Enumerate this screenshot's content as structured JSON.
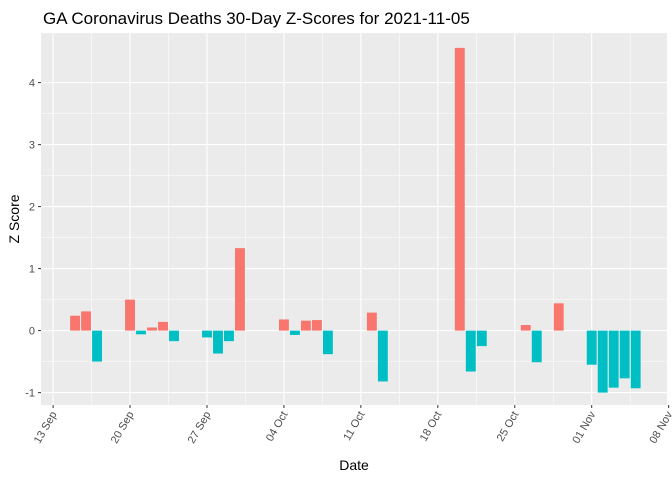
{
  "chart_data": {
    "type": "bar",
    "title": "GA Coronavirus Deaths 30-Day Z-Scores for 2021-11-05",
    "xlabel": "Date",
    "ylabel": "Z Score",
    "ylim": [
      -1.2,
      4.8
    ],
    "y_ticks": [
      -1,
      0,
      1,
      2,
      3,
      4
    ],
    "x_ticks": [
      {
        "date": "2021-09-13",
        "label": "13 Sep"
      },
      {
        "date": "2021-09-20",
        "label": "20 Sep"
      },
      {
        "date": "2021-09-27",
        "label": "27 Sep"
      },
      {
        "date": "2021-10-04",
        "label": "04 Oct"
      },
      {
        "date": "2021-10-11",
        "label": "11 Oct"
      },
      {
        "date": "2021-10-18",
        "label": "18 Oct"
      },
      {
        "date": "2021-10-25",
        "label": "25 Oct"
      },
      {
        "date": "2021-11-01",
        "label": "01 Nov"
      },
      {
        "date": "2021-11-08",
        "label": "08 Nov"
      }
    ],
    "grid": true,
    "legend": "none",
    "colors": {
      "positive": "#F8766D",
      "negative": "#00BFC4",
      "panel": "#EBEBEB"
    },
    "bars": [
      {
        "date": "2021-09-15",
        "value": 0.24
      },
      {
        "date": "2021-09-16",
        "value": 0.31
      },
      {
        "date": "2021-09-17",
        "value": -0.5
      },
      {
        "date": "2021-09-20",
        "value": 0.5
      },
      {
        "date": "2021-09-21",
        "value": -0.06
      },
      {
        "date": "2021-09-22",
        "value": 0.05
      },
      {
        "date": "2021-09-23",
        "value": 0.14
      },
      {
        "date": "2021-09-24",
        "value": -0.17
      },
      {
        "date": "2021-09-27",
        "value": -0.11
      },
      {
        "date": "2021-09-28",
        "value": -0.37
      },
      {
        "date": "2021-09-29",
        "value": -0.17
      },
      {
        "date": "2021-09-30",
        "value": 1.33
      },
      {
        "date": "2021-10-04",
        "value": 0.18
      },
      {
        "date": "2021-10-05",
        "value": -0.07
      },
      {
        "date": "2021-10-06",
        "value": 0.16
      },
      {
        "date": "2021-10-07",
        "value": 0.17
      },
      {
        "date": "2021-10-08",
        "value": -0.38
      },
      {
        "date": "2021-10-12",
        "value": 0.29
      },
      {
        "date": "2021-10-13",
        "value": -0.82
      },
      {
        "date": "2021-10-20",
        "value": 4.56
      },
      {
        "date": "2021-10-21",
        "value": -0.66
      },
      {
        "date": "2021-10-22",
        "value": -0.25
      },
      {
        "date": "2021-10-26",
        "value": 0.09
      },
      {
        "date": "2021-10-27",
        "value": -0.51
      },
      {
        "date": "2021-10-29",
        "value": 0.44
      },
      {
        "date": "2021-11-01",
        "value": -0.55
      },
      {
        "date": "2021-11-02",
        "value": -1.0
      },
      {
        "date": "2021-11-03",
        "value": -0.92
      },
      {
        "date": "2021-11-04",
        "value": -0.77
      },
      {
        "date": "2021-11-05",
        "value": -0.93
      }
    ]
  }
}
